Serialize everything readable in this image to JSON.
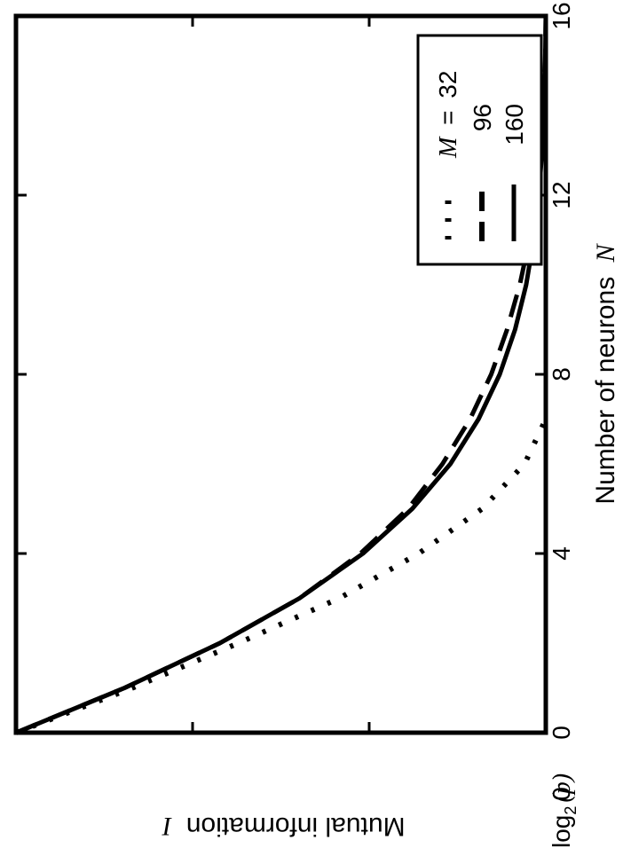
{
  "chart_data": {
    "type": "line",
    "rotation": "figure rotated 90 degrees counter-clockwise",
    "xlabel_text": "Number of neurons",
    "xlabel_symbol": "N",
    "ylabel_text": "Mutual information",
    "ylabel_symbol": "I",
    "xlim": [
      0,
      16
    ],
    "ylim": [
      0,
      1
    ],
    "x_ticks": [
      "0",
      "4",
      "8",
      "12",
      "16"
    ],
    "y_tick_bottom": "0",
    "y_tick_top_prefix": "log",
    "y_tick_top_sub": "2",
    "y_tick_top_arg": "(p)",
    "legend": {
      "placement": "upper-right",
      "symbol": "M",
      "equals": "=",
      "entries": [
        {
          "label": "32",
          "style": "dotted"
        },
        {
          "label": "96",
          "style": "dashed"
        },
        {
          "label": "160",
          "style": "solid"
        }
      ]
    },
    "series": [
      {
        "name": "32",
        "style": "dotted",
        "x": [
          0,
          1,
          2,
          3,
          4,
          5,
          6,
          7
        ],
        "y": [
          0,
          0.22,
          0.42,
          0.61,
          0.76,
          0.88,
          0.96,
          1.0
        ]
      },
      {
        "name": "96",
        "style": "dashed",
        "x": [
          0,
          1,
          2,
          3,
          4,
          5,
          6,
          7,
          8,
          9,
          10,
          11,
          12,
          13,
          14,
          15,
          16
        ],
        "y": [
          0,
          0.205,
          0.385,
          0.535,
          0.65,
          0.74,
          0.805,
          0.857,
          0.897,
          0.927,
          0.951,
          0.969,
          0.982,
          0.991,
          0.997,
          0.999,
          1.0
        ]
      },
      {
        "name": "160",
        "style": "solid",
        "x": [
          0,
          1,
          2,
          3,
          4,
          5,
          6,
          7,
          8,
          9,
          10,
          11,
          12,
          13,
          14,
          15,
          16
        ],
        "y": [
          0,
          0.205,
          0.385,
          0.535,
          0.655,
          0.748,
          0.82,
          0.873,
          0.913,
          0.942,
          0.963,
          0.977,
          0.987,
          0.993,
          0.997,
          0.999,
          1.0
        ]
      }
    ]
  }
}
